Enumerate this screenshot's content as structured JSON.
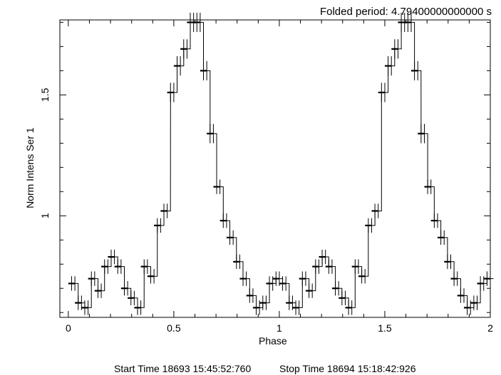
{
  "header": {
    "period_label": "Folded period: 4.79400000000000 s"
  },
  "footer": {
    "start_label": "Start Time 18693 15:45:52:760",
    "stop_label": "Stop Time 18694 15:18:42:926"
  },
  "chart_data": {
    "type": "line",
    "style": "step-histogram-with-error-bars",
    "xlabel": "Phase",
    "ylabel": "Norm Intens Ser 1",
    "xlim": [
      -0.04,
      2.0
    ],
    "ylim": [
      0.58,
      1.81
    ],
    "xticks": [
      0,
      0.5,
      1,
      1.5,
      2
    ],
    "xtick_labels": [
      "0",
      "0.5",
      "1",
      "1.5",
      "2"
    ],
    "yticks": [
      1,
      1.5
    ],
    "ytick_labels": [
      "1",
      "1.5"
    ],
    "grid": false,
    "bin_width": 0.03125,
    "phase": [
      0.0156,
      0.0469,
      0.0781,
      0.1094,
      0.1406,
      0.1719,
      0.2031,
      0.2344,
      0.2656,
      0.2969,
      0.3281,
      0.3594,
      0.3906,
      0.4219,
      0.4531,
      0.4844,
      0.5156,
      0.5469,
      0.5781,
      0.6094,
      0.6406,
      0.6719,
      0.7031,
      0.7344,
      0.7656,
      0.7969,
      0.8281,
      0.8594,
      0.8906,
      0.9219,
      0.9531,
      0.9844
    ],
    "values": [
      0.72,
      0.64,
      0.62,
      0.74,
      0.69,
      0.79,
      0.83,
      0.79,
      0.7,
      0.66,
      0.62,
      0.79,
      0.75,
      0.96,
      1.02,
      1.51,
      1.62,
      1.69,
      1.8,
      1.8,
      1.6,
      1.34,
      1.12,
      0.98,
      0.91,
      0.81,
      0.74,
      0.67,
      0.62,
      0.64,
      0.72,
      0.74
    ],
    "errors": [
      0.03,
      0.03,
      0.03,
      0.03,
      0.03,
      0.03,
      0.03,
      0.03,
      0.03,
      0.03,
      0.03,
      0.03,
      0.03,
      0.03,
      0.03,
      0.04,
      0.04,
      0.04,
      0.04,
      0.04,
      0.04,
      0.04,
      0.03,
      0.03,
      0.03,
      0.03,
      0.03,
      0.03,
      0.03,
      0.03,
      0.03,
      0.03
    ],
    "cycles_shown": 2
  }
}
